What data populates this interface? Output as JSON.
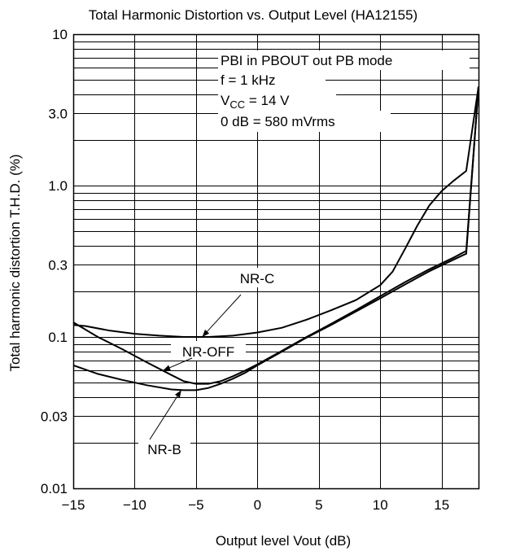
{
  "chart_data": {
    "type": "line",
    "title": "Total Harmonic Distortion vs. Output Level (HA12155)",
    "xlabel": "Output level Vout (dB)",
    "ylabel": "Total harmonic distortion T.H.D. (%)",
    "xlim": [
      -15,
      18
    ],
    "ylim": [
      0.01,
      10
    ],
    "yscale": "log",
    "grid": true,
    "x_ticks": [
      -15,
      -10,
      -5,
      0,
      5,
      10,
      15
    ],
    "x_tick_labels": [
      "−15",
      "−10",
      "−5",
      "0",
      "5",
      "10",
      "15"
    ],
    "y_ticks": [
      0.01,
      0.03,
      0.1,
      0.3,
      1.0,
      3.0,
      10
    ],
    "y_tick_labels": [
      "0.01",
      "0.03",
      "0.1",
      "0.3",
      "1.0",
      "3.0",
      "10"
    ],
    "conditions": {
      "line1": "PBI in PBOUT out PB mode",
      "line2": "f = 1 kHz",
      "vcc_prefix": "V",
      "vcc_sub": "CC",
      "vcc_value": " = 14 V",
      "line4": "0 dB = 580 mVrms"
    },
    "series": [
      {
        "name": "NR-C",
        "x": [
          -15,
          -14,
          -12,
          -10,
          -8,
          -6,
          -4,
          -2,
          0,
          2,
          4,
          6,
          8,
          10,
          11,
          12,
          13,
          14,
          15,
          16,
          17,
          18
        ],
        "y": [
          0.12,
          0.118,
          0.11,
          0.105,
          0.102,
          0.1,
          0.1,
          0.102,
          0.107,
          0.115,
          0.13,
          0.15,
          0.175,
          0.22,
          0.27,
          0.38,
          0.54,
          0.74,
          0.92,
          1.08,
          1.25,
          4.5
        ]
      },
      {
        "name": "NR-OFF",
        "x": [
          -15,
          -13,
          -11,
          -9,
          -7,
          -6,
          -5,
          -4,
          -3,
          -2,
          -1,
          0,
          2,
          4,
          6,
          8,
          10,
          12,
          14,
          16,
          17,
          18
        ],
        "y": [
          0.125,
          0.1,
          0.083,
          0.068,
          0.056,
          0.051,
          0.049,
          0.049,
          0.051,
          0.055,
          0.06,
          0.066,
          0.081,
          0.1,
          0.122,
          0.15,
          0.186,
          0.23,
          0.28,
          0.335,
          0.37,
          4.5
        ]
      },
      {
        "name": "NR-B",
        "x": [
          -15,
          -13,
          -11,
          -9,
          -7,
          -6,
          -5,
          -4,
          -3,
          -2,
          -1,
          0,
          2,
          4,
          6,
          8,
          10,
          12,
          14,
          16,
          17,
          18
        ],
        "y": [
          0.065,
          0.057,
          0.052,
          0.048,
          0.045,
          0.0445,
          0.0445,
          0.046,
          0.049,
          0.053,
          0.058,
          0.065,
          0.08,
          0.099,
          0.12,
          0.147,
          0.18,
          0.222,
          0.272,
          0.325,
          0.355,
          4.5
        ]
      }
    ],
    "annotations": [
      {
        "text": "NR-C",
        "series": "NR-C",
        "at_x": -4.5
      },
      {
        "text": "NR-OFF",
        "series": "NR-OFF",
        "at_x": -7.7
      },
      {
        "text": "NR-B",
        "series": "NR-B",
        "at_x": -6.2
      }
    ]
  }
}
